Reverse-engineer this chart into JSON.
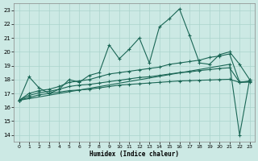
{
  "xlabel": "Humidex (Indice chaleur)",
  "bg_color": "#cce9e4",
  "grid_color": "#aad4cc",
  "line_color": "#1a6655",
  "x_ticks": [
    0,
    1,
    2,
    3,
    4,
    5,
    6,
    7,
    8,
    9,
    10,
    11,
    12,
    13,
    14,
    15,
    16,
    17,
    18,
    19,
    20,
    21,
    22,
    23
  ],
  "ylim": [
    13.5,
    23.5
  ],
  "xlim": [
    -0.5,
    23.5
  ],
  "yticks": [
    14,
    15,
    16,
    17,
    18,
    19,
    20,
    21,
    22,
    23
  ],
  "series1_y": [
    16.5,
    18.2,
    17.4,
    17.0,
    17.3,
    18.0,
    17.8,
    18.3,
    18.5,
    20.5,
    19.5,
    20.2,
    21.0,
    19.2,
    21.8,
    22.4,
    23.1,
    21.2,
    19.2,
    19.1,
    19.8,
    20.0,
    19.1,
    18.0
  ],
  "series2_y": [
    16.5,
    17.0,
    17.2,
    17.3,
    17.5,
    17.8,
    17.9,
    18.0,
    18.2,
    18.4,
    18.5,
    18.6,
    18.7,
    18.8,
    18.9,
    19.1,
    19.2,
    19.3,
    19.4,
    19.6,
    19.7,
    19.85,
    17.8,
    17.9
  ],
  "series3_y": [
    16.5,
    16.85,
    17.05,
    17.15,
    17.3,
    17.5,
    17.6,
    17.65,
    17.75,
    17.85,
    17.95,
    18.05,
    18.15,
    18.2,
    18.3,
    18.4,
    18.5,
    18.55,
    18.65,
    18.72,
    18.8,
    18.85,
    17.8,
    17.85
  ],
  "series4_y": [
    16.5,
    16.7,
    16.9,
    17.0,
    17.1,
    17.2,
    17.25,
    17.3,
    17.4,
    17.5,
    17.6,
    17.65,
    17.7,
    17.75,
    17.8,
    17.85,
    17.9,
    17.92,
    17.95,
    17.97,
    18.0,
    18.02,
    17.8,
    17.82
  ],
  "series5_x": [
    0,
    21,
    22,
    23
  ],
  "series5_y": [
    16.5,
    19.1,
    14.0,
    18.0
  ],
  "marker": "+"
}
